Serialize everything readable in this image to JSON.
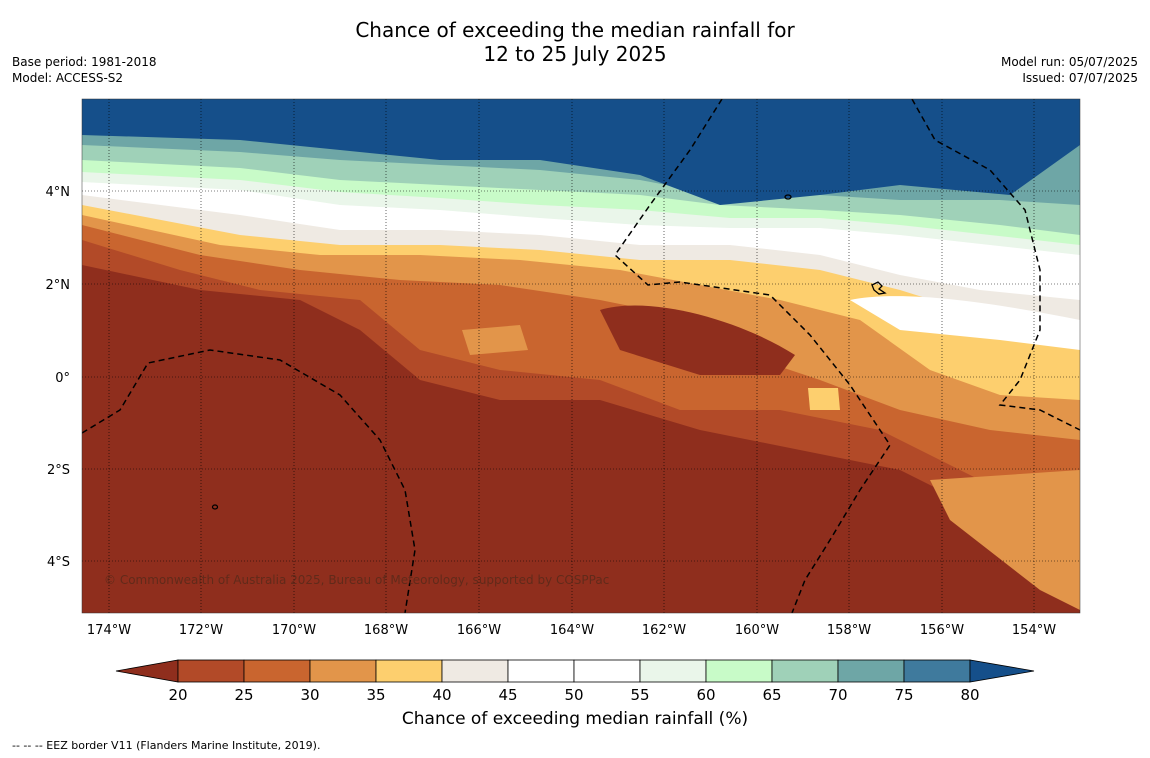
{
  "title_line1": "Chance of exceeding the median rainfall for",
  "title_line2": "12 to 25 July 2025",
  "base_period": "Base period: 1981-2018",
  "model": "Model: ACCESS-S2",
  "model_run": "Model run: 05/07/2025",
  "issued": "Issued: 07/07/2025",
  "copyright": "© Commonwealth of Australia 2025, Bureau of Meteorology, supported by COSPPac",
  "lon_ticks": [
    "174°W",
    "172°W",
    "170°W",
    "168°W",
    "166°W",
    "164°W",
    "162°W",
    "160°W",
    "158°W",
    "156°W",
    "154°W"
  ],
  "lat_ticks": [
    "4°N",
    "2°N",
    "0°",
    "2°S",
    "4°S"
  ],
  "colorbar": {
    "label": "Chance of exceeding median rainfall (%)",
    "ticks": [
      "20",
      "25",
      "30",
      "35",
      "40",
      "45",
      "50",
      "55",
      "60",
      "65",
      "70",
      "75",
      "80"
    ],
    "colors": [
      "#8f2e1d",
      "#b24a28",
      "#c9652f",
      "#e2954a",
      "#fdcf6e",
      "#efeae3",
      "#ffffff",
      "#ffffff",
      "#eaf6ea",
      "#c8fbc8",
      "#9fd1b8",
      "#6ea6a6",
      "#3f7a9d",
      "#154f8a"
    ]
  },
  "footer": "--  --  -- EEZ border V11 (Flanders Marine Institute, 2019)."
}
